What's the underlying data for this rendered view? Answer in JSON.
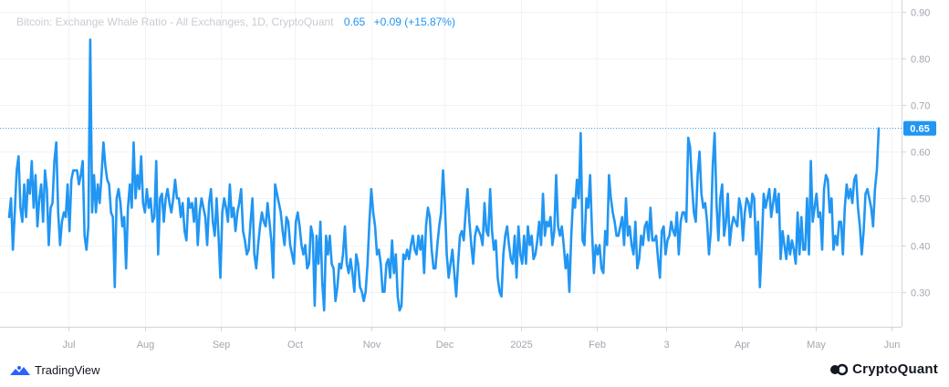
{
  "legend": {
    "title": "Bitcoin: Exchange Whale Ratio - All Exchanges, 1D, CryptoQuant",
    "value": "0.65",
    "change": "+0.09 (+15.87%)"
  },
  "branding": {
    "left_logo": "TradingView",
    "right_logo": "CryptoQuant"
  },
  "colors": {
    "line": "#2196f3",
    "grid": "#f0f3fa",
    "axis_text": "#a3a6af",
    "price_label_bg": "#2196f3"
  },
  "chart_data": {
    "type": "line",
    "title": "Bitcoin: Exchange Whale Ratio - All Exchanges, 1D, CryptoQuant",
    "x_start": "2024-06-03",
    "x_end": "2025-06-02",
    "xlim": [
      "2024-06-03",
      "2025-06-02"
    ],
    "ylim": [
      0.225,
      0.925
    ],
    "y_ticks": [
      0.3,
      0.4,
      0.5,
      0.6,
      0.7,
      0.8,
      0.9
    ],
    "y_tick_labels": [
      "0.30",
      "0.40",
      "0.50",
      "0.60",
      "0.70",
      "0.80",
      "0.90"
    ],
    "x_ticks": [
      {
        "label": "Jul",
        "date": "2024-07-01"
      },
      {
        "label": "Aug",
        "date": "2024-08-01"
      },
      {
        "label": "Sep",
        "date": "2024-09-01"
      },
      {
        "label": "Oct",
        "date": "2024-10-01"
      },
      {
        "label": "Nov",
        "date": "2024-11-01"
      },
      {
        "label": "Dec",
        "date": "2024-12-01"
      },
      {
        "label": "2025",
        "date": "2025-01-01"
      },
      {
        "label": "Feb",
        "date": "2025-02-01"
      },
      {
        "label": "3",
        "date": "2025-03-01"
      },
      {
        "label": "Apr",
        "date": "2025-04-01"
      },
      {
        "label": "May",
        "date": "2025-05-01"
      },
      {
        "label": "Jun",
        "date": "2025-06-01"
      }
    ],
    "last_value": 0.65,
    "last_value_label": "0.65",
    "grid": true,
    "series": [
      {
        "values": [
          0.46,
          0.5,
          0.39,
          0.47,
          0.56,
          0.59,
          0.48,
          0.45,
          0.53,
          0.46,
          0.54,
          0.51,
          0.58,
          0.48,
          0.55,
          0.44,
          0.5,
          0.53,
          0.45,
          0.56,
          0.52,
          0.4,
          0.48,
          0.49,
          0.58,
          0.62,
          0.47,
          0.4,
          0.45,
          0.47,
          0.46,
          0.53,
          0.43,
          0.54,
          0.56,
          0.56,
          0.56,
          0.53,
          0.55,
          0.58,
          0.42,
          0.39,
          0.44,
          0.84,
          0.47,
          0.55,
          0.47,
          0.53,
          0.49,
          0.55,
          0.62,
          0.57,
          0.54,
          0.53,
          0.47,
          0.46,
          0.31,
          0.5,
          0.52,
          0.49,
          0.44,
          0.46,
          0.35,
          0.48,
          0.53,
          0.48,
          0.62,
          0.5,
          0.55,
          0.52,
          0.59,
          0.49,
          0.47,
          0.52,
          0.48,
          0.5,
          0.45,
          0.46,
          0.58,
          0.38,
          0.5,
          0.51,
          0.45,
          0.5,
          0.52,
          0.49,
          0.47,
          0.5,
          0.54,
          0.5,
          0.5,
          0.46,
          0.49,
          0.43,
          0.41,
          0.5,
          0.48,
          0.49,
          0.45,
          0.5,
          0.4,
          0.47,
          0.5,
          0.48,
          0.46,
          0.4,
          0.49,
          0.52,
          0.45,
          0.42,
          0.5,
          0.42,
          0.33,
          0.47,
          0.5,
          0.48,
          0.45,
          0.53,
          0.46,
          0.48,
          0.43,
          0.47,
          0.49,
          0.52,
          0.43,
          0.41,
          0.38,
          0.39,
          0.45,
          0.5,
          0.38,
          0.35,
          0.4,
          0.44,
          0.47,
          0.45,
          0.44,
          0.49,
          0.45,
          0.41,
          0.33,
          0.53,
          0.51,
          0.49,
          0.47,
          0.43,
          0.4,
          0.46,
          0.45,
          0.4,
          0.38,
          0.36,
          0.45,
          0.47,
          0.44,
          0.4,
          0.38,
          0.4,
          0.35,
          0.36,
          0.44,
          0.42,
          0.27,
          0.42,
          0.36,
          0.45,
          0.32,
          0.26,
          0.42,
          0.38,
          0.42,
          0.36,
          0.35,
          0.28,
          0.31,
          0.36,
          0.35,
          0.38,
          0.44,
          0.36,
          0.34,
          0.37,
          0.34,
          0.3,
          0.38,
          0.36,
          0.31,
          0.3,
          0.28,
          0.3,
          0.36,
          0.45,
          0.52,
          0.47,
          0.44,
          0.38,
          0.39,
          0.36,
          0.3,
          0.3,
          0.36,
          0.37,
          0.33,
          0.41,
          0.34,
          0.38,
          0.29,
          0.26,
          0.27,
          0.38,
          0.37,
          0.39,
          0.37,
          0.4,
          0.42,
          0.39,
          0.38,
          0.42,
          0.39,
          0.42,
          0.34,
          0.44,
          0.48,
          0.46,
          0.39,
          0.35,
          0.35,
          0.4,
          0.44,
          0.47,
          0.56,
          0.49,
          0.38,
          0.33,
          0.36,
          0.39,
          0.34,
          0.29,
          0.36,
          0.42,
          0.43,
          0.41,
          0.47,
          0.52,
          0.45,
          0.4,
          0.36,
          0.42,
          0.44,
          0.43,
          0.42,
          0.4,
          0.49,
          0.43,
          0.42,
          0.52,
          0.43,
          0.39,
          0.41,
          0.33,
          0.3,
          0.29,
          0.38,
          0.42,
          0.44,
          0.4,
          0.37,
          0.36,
          0.42,
          0.33,
          0.44,
          0.38,
          0.36,
          0.42,
          0.36,
          0.44,
          0.4,
          0.42,
          0.37,
          0.38,
          0.41,
          0.45,
          0.4,
          0.51,
          0.42,
          0.45,
          0.44,
          0.46,
          0.4,
          0.43,
          0.55,
          0.44,
          0.42,
          0.44,
          0.4,
          0.35,
          0.38,
          0.3,
          0.42,
          0.5,
          0.48,
          0.54,
          0.5,
          0.64,
          0.41,
          0.4,
          0.5,
          0.48,
          0.55,
          0.43,
          0.34,
          0.4,
          0.38,
          0.4,
          0.35,
          0.34,
          0.43,
          0.4,
          0.55,
          0.5,
          0.47,
          0.45,
          0.42,
          0.42,
          0.44,
          0.46,
          0.4,
          0.5,
          0.42,
          0.44,
          0.4,
          0.38,
          0.45,
          0.35,
          0.37,
          0.42,
          0.4,
          0.44,
          0.45,
          0.41,
          0.48,
          0.41,
          0.41,
          0.42,
          0.37,
          0.33,
          0.43,
          0.44,
          0.38,
          0.41,
          0.42,
          0.45,
          0.43,
          0.42,
          0.47,
          0.38,
          0.45,
          0.47,
          0.47,
          0.45,
          0.63,
          0.61,
          0.53,
          0.47,
          0.45,
          0.55,
          0.6,
          0.51,
          0.48,
          0.49,
          0.45,
          0.38,
          0.43,
          0.57,
          0.64,
          0.49,
          0.41,
          0.5,
          0.53,
          0.42,
          0.45,
          0.51,
          0.4,
          0.44,
          0.46,
          0.45,
          0.44,
          0.5,
          0.48,
          0.41,
          0.47,
          0.5,
          0.49,
          0.46,
          0.51,
          0.5,
          0.38,
          0.45,
          0.31,
          0.4,
          0.51,
          0.48,
          0.5,
          0.52,
          0.46,
          0.49,
          0.52,
          0.47,
          0.51,
          0.37,
          0.43,
          0.4,
          0.37,
          0.42,
          0.38,
          0.41,
          0.39,
          0.36,
          0.47,
          0.38,
          0.46,
          0.39,
          0.39,
          0.5,
          0.38,
          0.58,
          0.45,
          0.48,
          0.51,
          0.46,
          0.47,
          0.39,
          0.52,
          0.55,
          0.54,
          0.47,
          0.5,
          0.39,
          0.42,
          0.4,
          0.45,
          0.45,
          0.38,
          0.48,
          0.53,
          0.5,
          0.52,
          0.49,
          0.54,
          0.55,
          0.48,
          0.44,
          0.38,
          0.43,
          0.51,
          0.52,
          0.5,
          0.48,
          0.44,
          0.52,
          0.56,
          0.65
        ]
      }
    ]
  }
}
